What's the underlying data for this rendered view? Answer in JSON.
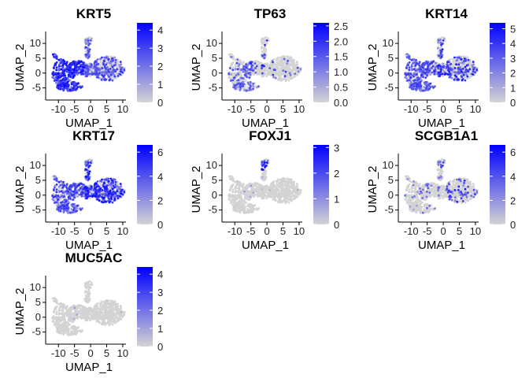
{
  "chart_data": [
    {
      "type": "scatter",
      "title": "KRT5",
      "xlabel": "UMAP_1",
      "ylabel": "UMAP_2",
      "xlim": [
        -13,
        11
      ],
      "ylim": [
        -8,
        14
      ],
      "xticks": [
        -10,
        -5,
        0,
        5,
        10
      ],
      "xtick_labels": [
        "-10",
        "-5",
        "0",
        "5",
        "10"
      ],
      "yticks": [
        -5,
        0,
        5,
        10
      ],
      "ytick_labels": [
        "-5",
        "0",
        "5",
        "10"
      ],
      "colorbar": {
        "min": 0,
        "max": 4.4,
        "ticks": [
          0,
          1,
          2,
          3,
          4
        ],
        "tick_labels": [
          "0",
          "1",
          "2",
          "3",
          "4"
        ],
        "low_color": "#d3d3d3",
        "high_color": "#0000ff"
      },
      "pattern": "krt5"
    },
    {
      "type": "scatter",
      "title": "TP63",
      "xlabel": "UMAP_1",
      "ylabel": "UMAP_2",
      "xlim": [
        -13,
        11
      ],
      "ylim": [
        -8,
        14
      ],
      "xticks": [
        -10,
        -5,
        0,
        5,
        10
      ],
      "xtick_labels": [
        "-10",
        "-5",
        "0",
        "5",
        "10"
      ],
      "yticks": [
        -5,
        0,
        5,
        10
      ],
      "ytick_labels": [
        "-5",
        "0",
        "5",
        "10"
      ],
      "colorbar": {
        "min": 0,
        "max": 2.6,
        "ticks": [
          0,
          0.5,
          1,
          1.5,
          2,
          2.5
        ],
        "tick_labels": [
          "0.0",
          "0.5",
          "1.0",
          "1.5",
          "2.0",
          "2.5"
        ],
        "low_color": "#d3d3d3",
        "high_color": "#0000ff"
      },
      "pattern": "tp63"
    },
    {
      "type": "scatter",
      "title": "KRT14",
      "xlabel": "UMAP_1",
      "ylabel": "UMAP_2",
      "xlim": [
        -13,
        11
      ],
      "ylim": [
        -8,
        14
      ],
      "xticks": [
        -10,
        -5,
        0,
        5,
        10
      ],
      "xtick_labels": [
        "-10",
        "-5",
        "0",
        "5",
        "10"
      ],
      "yticks": [
        -5,
        0,
        5,
        10
      ],
      "ytick_labels": [
        "-5",
        "0",
        "5",
        "10"
      ],
      "colorbar": {
        "min": 0,
        "max": 5.4,
        "ticks": [
          0,
          1,
          2,
          3,
          4,
          5
        ],
        "tick_labels": [
          "0",
          "1",
          "2",
          "3",
          "4",
          "5"
        ],
        "low_color": "#d3d3d3",
        "high_color": "#0000ff"
      },
      "pattern": "krt14"
    },
    {
      "type": "scatter",
      "title": "KRT17",
      "xlabel": "UMAP_1",
      "ylabel": "UMAP_2",
      "xlim": [
        -13,
        11
      ],
      "ylim": [
        -8,
        14
      ],
      "xticks": [
        -10,
        -5,
        0,
        5,
        10
      ],
      "xtick_labels": [
        "-10",
        "-5",
        "0",
        "5",
        "10"
      ],
      "yticks": [
        -5,
        0,
        5,
        10
      ],
      "ytick_labels": [
        "-5",
        "0",
        "5",
        "10"
      ],
      "colorbar": {
        "min": 0,
        "max": 6.6,
        "ticks": [
          0,
          2,
          4,
          6
        ],
        "tick_labels": [
          "0",
          "2",
          "4",
          "6"
        ],
        "low_color": "#d3d3d3",
        "high_color": "#0000ff"
      },
      "pattern": "krt17"
    },
    {
      "type": "scatter",
      "title": "FOXJ1",
      "xlabel": "UMAP_1",
      "ylabel": "UMAP_2",
      "xlim": [
        -13,
        11
      ],
      "ylim": [
        -8,
        14
      ],
      "xticks": [
        -10,
        -5,
        0,
        5,
        10
      ],
      "xtick_labels": [
        "-10",
        "-5",
        "0",
        "5",
        "10"
      ],
      "yticks": [
        -5,
        0,
        5,
        10
      ],
      "ytick_labels": [
        "-5",
        "0",
        "5",
        "10"
      ],
      "colorbar": {
        "min": 0,
        "max": 3.1,
        "ticks": [
          0,
          1,
          2,
          3
        ],
        "tick_labels": [
          "0",
          "1",
          "2",
          "3"
        ],
        "low_color": "#d3d3d3",
        "high_color": "#0000ff"
      },
      "pattern": "foxj1"
    },
    {
      "type": "scatter",
      "title": "SCGB1A1",
      "xlabel": "UMAP_1",
      "ylabel": "UMAP_2",
      "xlim": [
        -13,
        11
      ],
      "ylim": [
        -8,
        14
      ],
      "xticks": [
        -10,
        -5,
        0,
        5,
        10
      ],
      "xtick_labels": [
        "-10",
        "-5",
        "0",
        "5",
        "10"
      ],
      "yticks": [
        -5,
        0,
        5,
        10
      ],
      "ytick_labels": [
        "-5",
        "0",
        "5",
        "10"
      ],
      "colorbar": {
        "min": 0,
        "max": 6.6,
        "ticks": [
          0,
          2,
          4,
          6
        ],
        "tick_labels": [
          "0",
          "2",
          "4",
          "6"
        ],
        "low_color": "#d3d3d3",
        "high_color": "#0000ff"
      },
      "pattern": "scgb1a1"
    },
    {
      "type": "scatter",
      "title": "MUC5AC",
      "xlabel": "UMAP_1",
      "ylabel": "UMAP_2",
      "xlim": [
        -13,
        11
      ],
      "ylim": [
        -8,
        14
      ],
      "xticks": [
        -10,
        -5,
        0,
        5,
        10
      ],
      "xtick_labels": [
        "-10",
        "-5",
        "0",
        "5",
        "10"
      ],
      "yticks": [
        -5,
        0,
        5,
        10
      ],
      "ytick_labels": [
        "-5",
        "0",
        "5",
        "10"
      ],
      "colorbar": {
        "min": 0,
        "max": 4.4,
        "ticks": [
          0,
          1,
          2,
          3,
          4
        ],
        "tick_labels": [
          "0",
          "1",
          "2",
          "3",
          "4"
        ],
        "low_color": "#d3d3d3",
        "high_color": "#0000ff"
      },
      "pattern": "muc5ac"
    }
  ]
}
